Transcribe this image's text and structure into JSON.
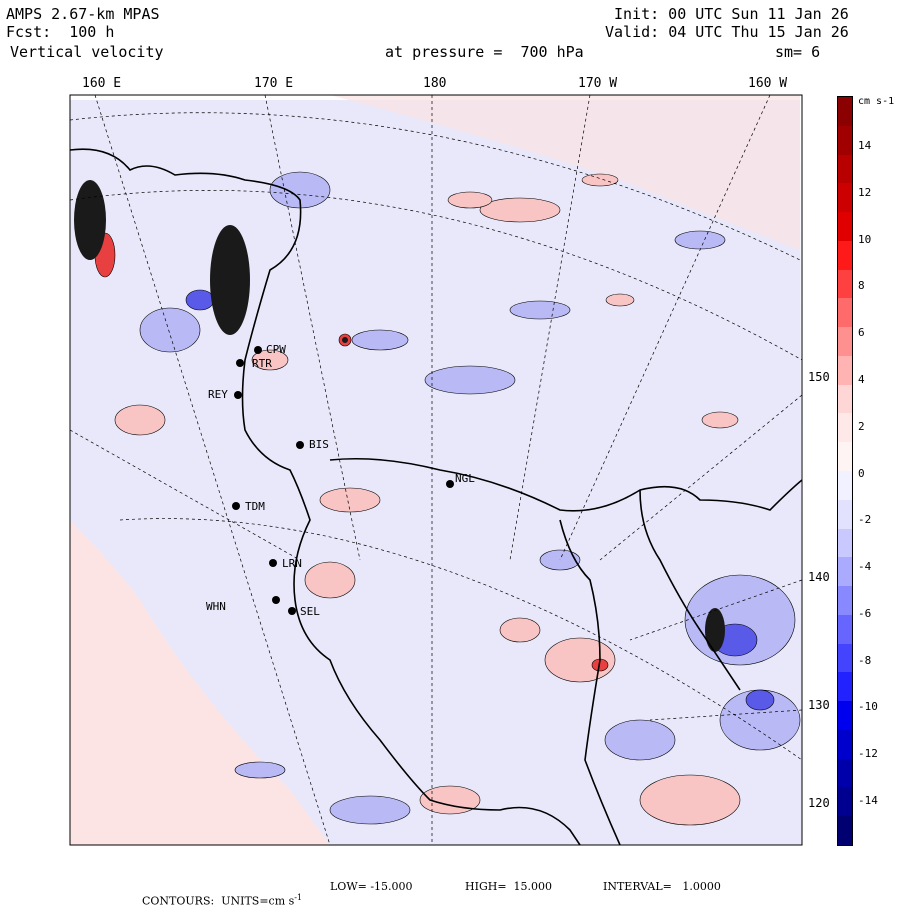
{
  "header": {
    "model": "AMPS 2.67-km MPAS",
    "forecast": "Fcst:  100 h",
    "field": "Vertical velocity",
    "init": "Init: 00 UTC Sun 11 Jan 26",
    "valid": "Valid: 04 UTC Thu 15 Jan 26",
    "level": "at pressure =  700 hPa",
    "smoothing": "sm= 6"
  },
  "longitude_labels": [
    "160 E",
    "170 E",
    "180",
    "170 W",
    "160 W"
  ],
  "latitude_labels": [
    "150 W",
    "140 W",
    "130 W",
    "120 W"
  ],
  "stations": [
    "CPW",
    "RTR",
    "REY",
    "BIS",
    "NGL",
    "TDM",
    "LRN",
    "WHN",
    "SEL"
  ],
  "colorbar": {
    "units": "cm s-1",
    "labels": [
      "14",
      "12",
      "10",
      "8",
      "6",
      "4",
      "2",
      "0",
      "-2",
      "-4",
      "-6",
      "-8",
      "-10",
      "-12",
      "-14"
    ],
    "colors": [
      "#8b0000",
      "#a10000",
      "#b80000",
      "#cc0000",
      "#e00000",
      "#ff1a1a",
      "#ff4040",
      "#ff6a6a",
      "#ff9090",
      "#ffb3b3",
      "#ffd6d6",
      "#ffe8e8",
      "#fff4f4",
      "#f1f1ff",
      "#e2e2ff",
      "#c9c9ff",
      "#aaaaff",
      "#8888ff",
      "#6666ff",
      "#4444ff",
      "#2222ff",
      "#0000ee",
      "#0000cc",
      "#0000aa",
      "#000090",
      "#000070"
    ]
  },
  "footer": {
    "contours": "CONTOURS:  UNITS=cm s",
    "units_exp": "-1",
    "low": "LOW= -15.000",
    "high": "HIGH=  15.000",
    "interval": "INTERVAL=   1.0000"
  },
  "colors": {
    "background_light_pink": "#fde6e6",
    "background_light_blue": "#e6e6fb",
    "pos_contour": "#f4a3a3",
    "neg_contour": "#8e8ef0"
  }
}
